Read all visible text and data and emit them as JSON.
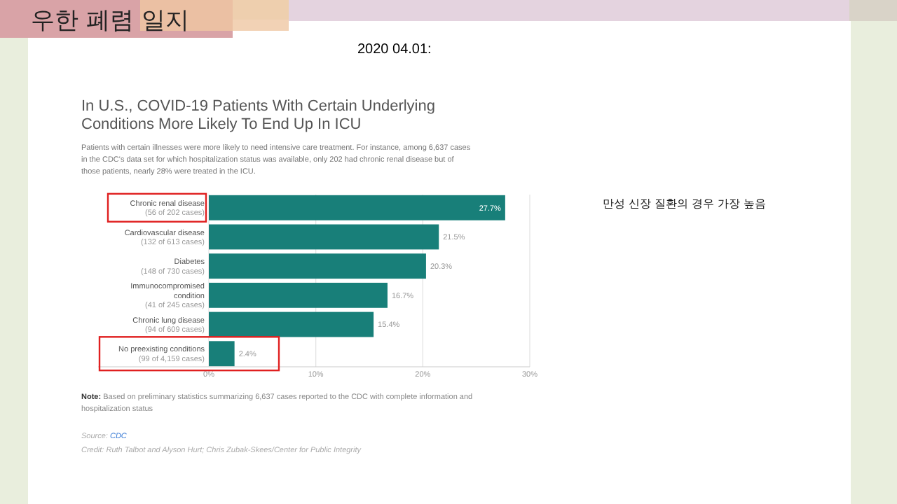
{
  "chart_data": {
    "type": "bar",
    "orientation": "horizontal",
    "title": "In U.S., COVID-19 Patients With Certain Underlying Conditions More Likely To End Up In ICU",
    "subtitle": "Patients with certain illnesses were more likely to need intensive care treatment. For instance, among 6,637 cases in the CDC's data set for which hospitalization status was available, only 202 had chronic renal disease but of those patients, nearly 28% were treated in the ICU.",
    "categories": [
      "Chronic renal disease\n(56 of 202 cases)",
      "Cardiovascular disease\n(132 of 613 cases)",
      "Diabetes\n(148 of 730 cases)",
      "Immunocompromised\ncondition\n(41 of 245 cases)",
      "Chronic lung disease\n(94 of 609 cases)",
      "No preexisting conditions\n(99 of 4,159 cases)"
    ],
    "values": [
      27.7,
      21.5,
      20.3,
      16.7,
      15.4,
      2.4
    ],
    "value_labels": [
      "27.7%",
      "21.5%",
      "20.3%",
      "16.7%",
      "15.4%",
      "2.4%"
    ],
    "color": "#187f79",
    "xlim": [
      0,
      30
    ],
    "xticks": [
      {
        "value": 0,
        "label": "0%"
      },
      {
        "value": 10,
        "label": "10%"
      },
      {
        "value": 20,
        "label": "20%"
      },
      {
        "value": 30,
        "label": "30%"
      }
    ],
    "grid": "x",
    "annotations": [
      "우한 폐렴 일지",
      "2020 04.01:",
      "만성 신장 질환의 경우 가장 높음",
      "Note: Based on preliminary statistics summarizing 6,637 cases reported to the CDC with complete information and hospitalization status",
      "Source: CDC",
      "Credit: Ruth Talbot and Alyson Hurt; Chris Zubak-Skees/Center for Public Integrity"
    ]
  }
}
